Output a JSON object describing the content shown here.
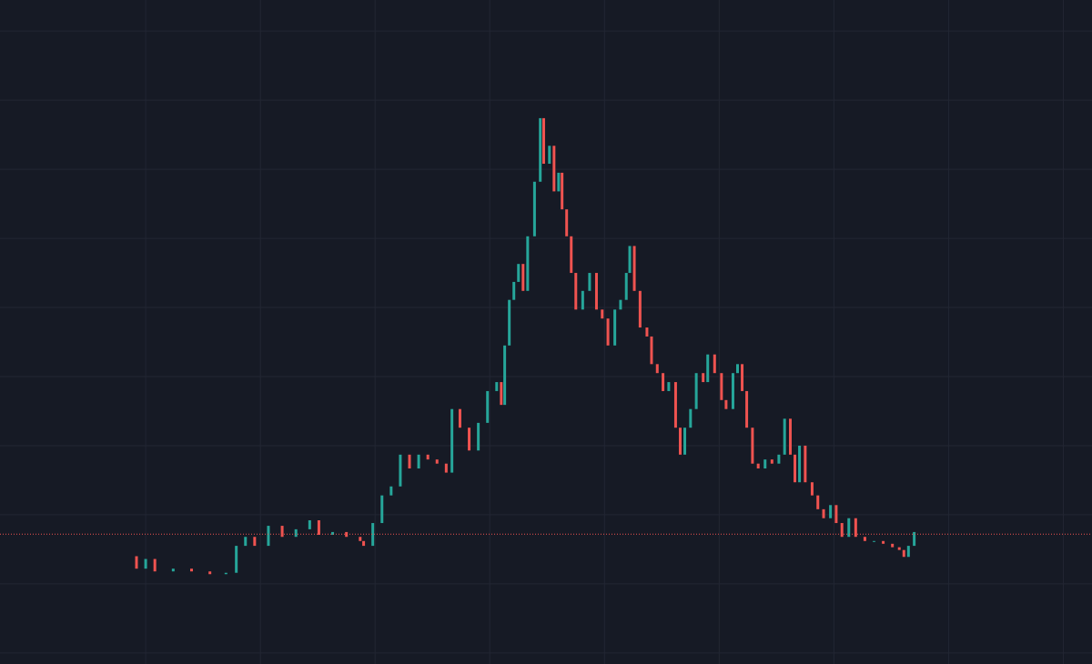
{
  "chart_data": {
    "type": "candlestick",
    "background": "#161a25",
    "grid": true,
    "grid_color": "#222633",
    "up_color": "#26a69a",
    "down_color": "#ef5350",
    "price_line": 1.72,
    "price_line_color": "#ef5350",
    "xlim": [
      -1.27,
      8.25
    ],
    "xticks": [
      0,
      1,
      2,
      3,
      4,
      5,
      6,
      7,
      8
    ],
    "ylim": [
      -0.16,
      9.45
    ],
    "yticks": [
      0,
      1,
      2,
      3,
      4,
      5,
      6,
      7,
      8,
      9
    ],
    "x": [
      -0.08,
      0,
      0.08,
      0.24,
      0.4,
      0.56,
      0.7,
      0.79,
      0.87,
      0.95,
      1.07,
      1.19,
      1.31,
      1.43,
      1.51,
      1.63,
      1.75,
      1.87,
      1.9,
      1.98,
      2.06,
      2.14,
      2.22,
      2.3,
      2.38,
      2.46,
      2.54,
      2.62,
      2.67,
      2.74,
      2.82,
      2.9,
      2.98,
      3.06,
      3.1,
      3.13,
      3.17,
      3.21,
      3.25,
      3.29,
      3.33,
      3.39,
      3.44,
      3.47,
      3.52,
      3.56,
      3.6,
      3.63,
      3.67,
      3.71,
      3.75,
      3.81,
      3.87,
      3.93,
      3.98,
      4.03,
      4.09,
      4.14,
      4.19,
      4.22,
      4.26,
      4.31,
      4.37,
      4.41,
      4.46,
      4.51,
      4.56,
      4.62,
      4.66,
      4.7,
      4.75,
      4.8,
      4.86,
      4.9,
      4.96,
      5.02,
      5.06,
      5.12,
      5.16,
      5.2,
      5.24,
      5.29,
      5.34,
      5.4,
      5.46,
      5.52,
      5.57,
      5.62,
      5.66,
      5.7,
      5.75,
      5.81,
      5.86,
      5.91,
      5.97,
      6.02,
      6.07,
      6.13,
      6.19,
      6.27,
      6.35,
      6.43,
      6.51,
      6.57,
      6.61,
      6.65,
      6.7
    ],
    "close": [
      1.22,
      1.36,
      1.18,
      1.22,
      1.18,
      1.14,
      1.16,
      1.55,
      1.68,
      1.55,
      1.84,
      1.68,
      1.79,
      1.92,
      1.71,
      1.75,
      1.68,
      1.62,
      1.55,
      1.88,
      2.28,
      2.41,
      2.87,
      2.67,
      2.87,
      2.8,
      2.74,
      2.61,
      3.53,
      3.26,
      2.93,
      3.33,
      3.79,
      3.92,
      3.59,
      4.45,
      5.11,
      5.37,
      5.63,
      5.24,
      6.03,
      6.82,
      7.74,
      7.08,
      7.34,
      6.68,
      6.95,
      6.42,
      6.03,
      5.5,
      4.97,
      5.24,
      5.5,
      4.97,
      4.84,
      4.45,
      4.97,
      5.11,
      5.5,
      5.89,
      5.24,
      4.71,
      4.58,
      4.18,
      4.05,
      3.79,
      3.92,
      3.26,
      2.87,
      3.26,
      3.53,
      4.05,
      3.92,
      4.32,
      4.05,
      3.66,
      3.53,
      4.05,
      4.18,
      3.79,
      3.26,
      2.74,
      2.67,
      2.8,
      2.74,
      2.87,
      3.39,
      2.87,
      2.47,
      3.0,
      2.47,
      2.28,
      2.08,
      1.95,
      2.14,
      1.88,
      1.68,
      1.95,
      1.68,
      1.62,
      1.62,
      1.58,
      1.53,
      1.49,
      1.39,
      1.55,
      1.75
    ],
    "open": [
      1.4,
      1.22,
      1.36,
      1.18,
      1.22,
      1.18,
      1.14,
      1.16,
      1.55,
      1.68,
      1.55,
      1.84,
      1.68,
      1.79,
      1.92,
      1.71,
      1.75,
      1.68,
      1.62,
      1.55,
      1.88,
      2.28,
      2.41,
      2.87,
      2.67,
      2.87,
      2.8,
      2.74,
      2.61,
      3.53,
      3.26,
      2.93,
      3.33,
      3.79,
      3.92,
      3.59,
      4.45,
      5.11,
      5.37,
      5.63,
      5.24,
      6.03,
      6.82,
      7.74,
      7.08,
      7.34,
      6.68,
      6.95,
      6.42,
      6.03,
      5.5,
      4.97,
      5.24,
      5.5,
      4.97,
      4.84,
      4.45,
      4.97,
      5.11,
      5.5,
      5.89,
      5.24,
      4.71,
      4.58,
      4.18,
      4.05,
      3.79,
      3.92,
      3.26,
      2.87,
      3.26,
      3.53,
      4.05,
      3.92,
      4.32,
      4.05,
      3.66,
      3.53,
      4.05,
      4.18,
      3.79,
      3.26,
      2.74,
      2.67,
      2.8,
      2.74,
      2.87,
      3.39,
      2.87,
      2.47,
      3.0,
      2.47,
      2.28,
      2.08,
      1.95,
      2.14,
      1.88,
      1.68,
      1.95,
      1.68,
      1.62,
      1.62,
      1.58,
      1.53,
      1.49,
      1.39,
      1.55
    ]
  }
}
